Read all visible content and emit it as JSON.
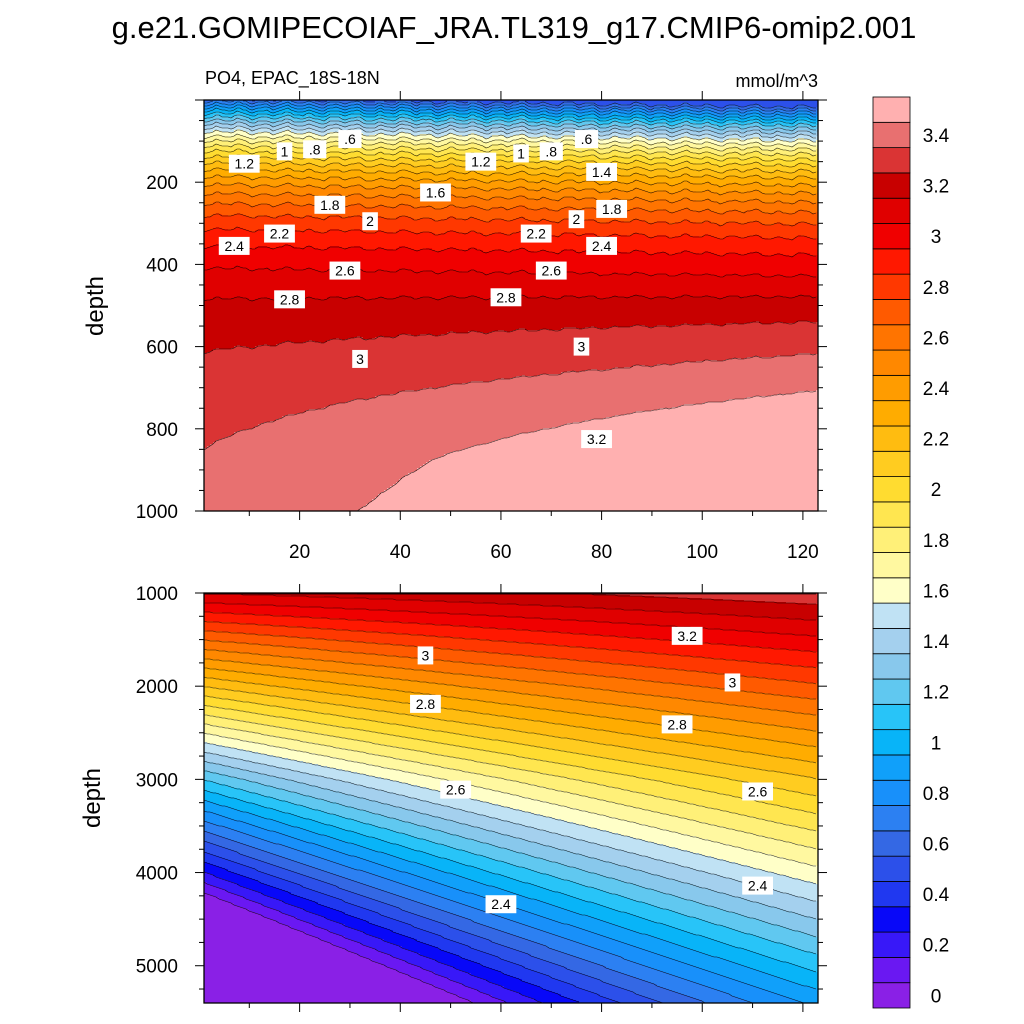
{
  "chart_data": {
    "type": "contour",
    "title": "g.e21.GOMIPECOIAF_JRA.TL319_g17.CMIP6-omip2.001",
    "subtitle_left": "PO4, EPAC_18S-18N",
    "subtitle_right": "mmol/m^3",
    "variable": "PO4",
    "region": "EPAC_18S-18N",
    "units": "mmol/m^3",
    "xlim": [
      1,
      123
    ],
    "x_tick_labels": [
      "20",
      "40",
      "60",
      "80",
      "100",
      "120"
    ],
    "panels": [
      {
        "name": "upper",
        "ylabel": "depth",
        "ylim": [
          0,
          1000
        ],
        "y_tick_labels": [
          "200",
          "400",
          "600",
          "800",
          "1000"
        ],
        "contour_labels": [
          {
            "text": "1.2",
            "x": 9,
            "depth": 155
          },
          {
            "text": "1",
            "x": 17,
            "depth": 125
          },
          {
            "text": ".8",
            "x": 23,
            "depth": 120
          },
          {
            "text": ".6",
            "x": 30,
            "depth": 95
          },
          {
            "text": "1.2",
            "x": 56,
            "depth": 150
          },
          {
            "text": "1",
            "x": 64,
            "depth": 130
          },
          {
            "text": ".8",
            "x": 70,
            "depth": 125
          },
          {
            "text": ".6",
            "x": 77,
            "depth": 95
          },
          {
            "text": "1.4",
            "x": 80,
            "depth": 175
          },
          {
            "text": "1.6",
            "x": 47,
            "depth": 225
          },
          {
            "text": "1.8",
            "x": 26,
            "depth": 255
          },
          {
            "text": "1.8",
            "x": 82,
            "depth": 265
          },
          {
            "text": "2",
            "x": 34,
            "depth": 295
          },
          {
            "text": "2",
            "x": 75,
            "depth": 290
          },
          {
            "text": "2.2",
            "x": 16,
            "depth": 325
          },
          {
            "text": "2.2",
            "x": 67,
            "depth": 325
          },
          {
            "text": "2.4",
            "x": 7,
            "depth": 355
          },
          {
            "text": "2.4",
            "x": 80,
            "depth": 355
          },
          {
            "text": "2.6",
            "x": 29,
            "depth": 415
          },
          {
            "text": "2.6",
            "x": 70,
            "depth": 415
          },
          {
            "text": "2.8",
            "x": 18,
            "depth": 485
          },
          {
            "text": "2.8",
            "x": 61,
            "depth": 480
          },
          {
            "text": "3",
            "x": 32,
            "depth": 630
          },
          {
            "text": "3",
            "x": 76,
            "depth": 600
          },
          {
            "text": "3.2",
            "x": 79,
            "depth": 825
          }
        ]
      },
      {
        "name": "lower",
        "ylabel": "depth",
        "ylim": [
          1000,
          5400
        ],
        "y_tick_labels": [
          "1000",
          "2000",
          "3000",
          "4000",
          "5000"
        ],
        "contour_labels": [
          {
            "text": "3.2",
            "x": 97,
            "depth": 1460
          },
          {
            "text": "3",
            "x": 45,
            "depth": 1670
          },
          {
            "text": "3",
            "x": 106,
            "depth": 1960
          },
          {
            "text": "2.8",
            "x": 45,
            "depth": 2190
          },
          {
            "text": "2.8",
            "x": 95,
            "depth": 2410
          },
          {
            "text": "2.6",
            "x": 51,
            "depth": 3110
          },
          {
            "text": "2.6",
            "x": 111,
            "depth": 3130
          },
          {
            "text": "2.4",
            "x": 60,
            "depth": 4340
          },
          {
            "text": "2.4",
            "x": 111,
            "depth": 4140
          }
        ]
      }
    ],
    "colorbar": {
      "levels": [
        0,
        0.1,
        0.2,
        0.3,
        0.4,
        0.5,
        0.6,
        0.7,
        0.8,
        0.9,
        1.0,
        1.1,
        1.2,
        1.3,
        1.4,
        1.5,
        1.6,
        1.7,
        1.8,
        1.9,
        2.0,
        2.1,
        2.2,
        2.3,
        2.4,
        2.5,
        2.6,
        2.7,
        2.8,
        2.9,
        3.0,
        3.1,
        3.2,
        3.3,
        3.4,
        3.5
      ],
      "tick_labels": [
        "0",
        "0.2",
        "0.4",
        "0.6",
        "0.8",
        "1",
        "1.2",
        "1.4",
        "1.6",
        "1.8",
        "2",
        "2.2",
        "2.4",
        "2.6",
        "2.8",
        "3",
        "3.2",
        "3.4"
      ],
      "colors": [
        "#8a20e6",
        "#6a18f2",
        "#3818f8",
        "#0808f8",
        "#2038f0",
        "#2c50ea",
        "#3468e4",
        "#2c80f2",
        "#1890fa",
        "#10a0fa",
        "#08b4f8",
        "#28c4f8",
        "#60c8f0",
        "#88c8ec",
        "#a4d0ee",
        "#c0e2f4",
        "#ffffc8",
        "#fff8a0",
        "#fff078",
        "#ffe650",
        "#ffdc30",
        "#ffcc20",
        "#ffbc10",
        "#ffac00",
        "#ff9c00",
        "#ff8800",
        "#ff7400",
        "#ff5a00",
        "#ff3800",
        "#ff1800",
        "#f00000",
        "#e00000",
        "#c80000",
        "#da3434",
        "#e87070",
        "#ffb0b0"
      ]
    }
  }
}
